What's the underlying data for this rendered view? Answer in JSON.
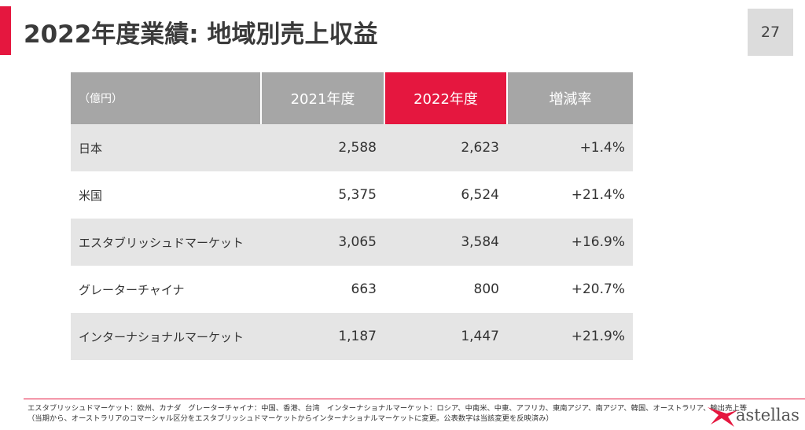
{
  "title": "2022年度業績: 地域別売上収益",
  "page_number": "27",
  "colors": {
    "accent": "#e5173f",
    "header_gray": "#a6a6a6",
    "row_shade": "#e5e5e5"
  },
  "table": {
    "headers": [
      "（億円）",
      "2021年度",
      "2022年度",
      "増減率"
    ],
    "rows": [
      [
        "日本",
        "2,588",
        "2,623",
        "+1.4%"
      ],
      [
        "米国",
        "5,375",
        "6,524",
        "+21.4%"
      ],
      [
        "エスタブリッシュドマーケット",
        "3,065",
        "3,584",
        "+16.9%"
      ],
      [
        "グレーターチャイナ",
        "663",
        "800",
        "+20.7%"
      ],
      [
        "インターナショナルマーケット",
        "1,187",
        "1,447",
        "+21.9%"
      ]
    ]
  },
  "footnote": {
    "line1": "エスタブリッシュドマーケット：欧州、カナダ　グレーターチャイナ：中国、香港、台湾　インターナショナルマーケット：ロシア、中南米、中東、アフリカ、東南アジア、南アジア、韓国、オーストラリア、輸出売上等",
    "line2": "（当期から、オーストラリアのコマーシャル区分をエスタブリッシュドマーケットからインターナショナルマーケットに変更。公表数字は当該変更を反映済み）"
  },
  "logo": {
    "text": "astellas",
    "icon": "astellas-star-logo-icon"
  }
}
